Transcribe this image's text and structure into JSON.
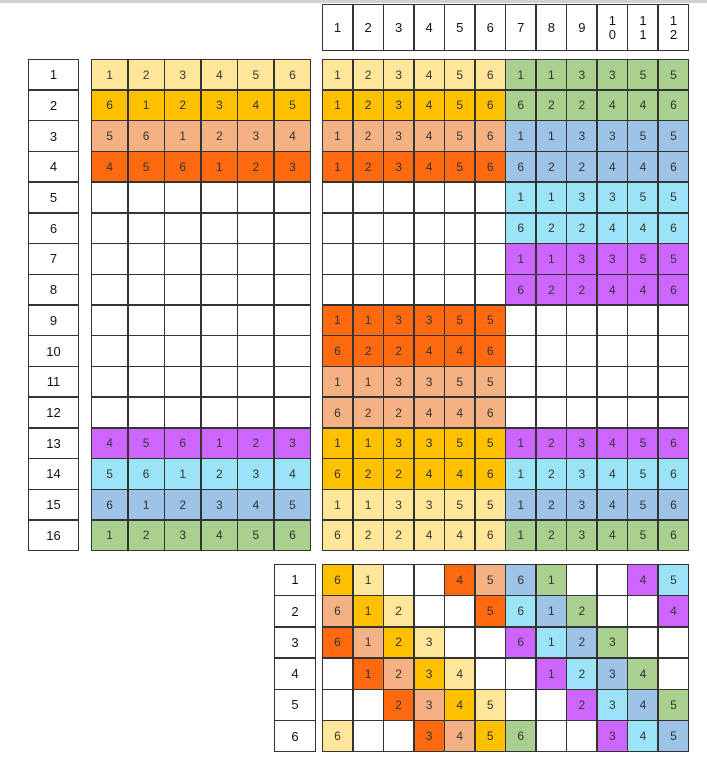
{
  "palette": {
    "Y": "#FFE699",
    "G2": "#FFC000",
    "P": "#F4B183",
    "O": "#FF6A10",
    "GR": "#A9D08E",
    "B": "#9DC3E6",
    "C": "#9BE3F7",
    "U": "#CC66FF",
    "W": "#FFFFFF"
  },
  "header": [
    "1",
    "2",
    "3",
    "4",
    "5",
    "6",
    "7",
    "8",
    "9",
    "1\n0",
    "1\n1",
    "1\n2"
  ],
  "row_labels": [
    "1",
    "2",
    "3",
    "4",
    "5",
    "6",
    "7",
    "8",
    "9",
    "10",
    "11",
    "12",
    "13",
    "14",
    "15",
    "16"
  ],
  "left_grid": {
    "values": [
      [
        "1",
        "2",
        "3",
        "4",
        "5",
        "6"
      ],
      [
        "6",
        "1",
        "2",
        "3",
        "4",
        "5"
      ],
      [
        "5",
        "6",
        "1",
        "2",
        "3",
        "4"
      ],
      [
        "4",
        "5",
        "6",
        "1",
        "2",
        "3"
      ],
      [
        "",
        "",
        "",
        "",
        "",
        ""
      ],
      [
        "",
        "",
        "",
        "",
        "",
        ""
      ],
      [
        "",
        "",
        "",
        "",
        "",
        ""
      ],
      [
        "",
        "",
        "",
        "",
        "",
        ""
      ],
      [
        "",
        "",
        "",
        "",
        "",
        ""
      ],
      [
        "",
        "",
        "",
        "",
        "",
        ""
      ],
      [
        "",
        "",
        "",
        "",
        "",
        ""
      ],
      [
        "",
        "",
        "",
        "",
        "",
        ""
      ],
      [
        "4",
        "5",
        "6",
        "1",
        "2",
        "3"
      ],
      [
        "5",
        "6",
        "1",
        "2",
        "3",
        "4"
      ],
      [
        "6",
        "1",
        "2",
        "3",
        "4",
        "5"
      ],
      [
        "1",
        "2",
        "3",
        "4",
        "5",
        "6"
      ]
    ],
    "row_colors": [
      "Y",
      "G2",
      "P",
      "O",
      "W",
      "W",
      "W",
      "W",
      "W",
      "W",
      "W",
      "W",
      "U",
      "C",
      "B",
      "GR"
    ]
  },
  "main_grid": {
    "values": [
      [
        "1",
        "2",
        "3",
        "4",
        "5",
        "6",
        "1",
        "1",
        "3",
        "3",
        "5",
        "5"
      ],
      [
        "1",
        "2",
        "3",
        "4",
        "5",
        "6",
        "6",
        "2",
        "2",
        "4",
        "4",
        "6"
      ],
      [
        "1",
        "2",
        "3",
        "4",
        "5",
        "6",
        "1",
        "1",
        "3",
        "3",
        "5",
        "5"
      ],
      [
        "1",
        "2",
        "3",
        "4",
        "5",
        "6",
        "6",
        "2",
        "2",
        "4",
        "4",
        "6"
      ],
      [
        "",
        "",
        "",
        "",
        "",
        "",
        "1",
        "1",
        "3",
        "3",
        "5",
        "5"
      ],
      [
        "",
        "",
        "",
        "",
        "",
        "",
        "6",
        "2",
        "2",
        "4",
        "4",
        "6"
      ],
      [
        "",
        "",
        "",
        "",
        "",
        "",
        "1",
        "1",
        "3",
        "3",
        "5",
        "5"
      ],
      [
        "",
        "",
        "",
        "",
        "",
        "",
        "6",
        "2",
        "2",
        "4",
        "4",
        "6"
      ],
      [
        "1",
        "1",
        "3",
        "3",
        "5",
        "5",
        "",
        "",
        "",
        "",
        "",
        ""
      ],
      [
        "6",
        "2",
        "2",
        "4",
        "4",
        "6",
        "",
        "",
        "",
        "",
        "",
        ""
      ],
      [
        "1",
        "1",
        "3",
        "3",
        "5",
        "5",
        "",
        "",
        "",
        "",
        "",
        ""
      ],
      [
        "6",
        "2",
        "2",
        "4",
        "4",
        "6",
        "",
        "",
        "",
        "",
        "",
        ""
      ],
      [
        "1",
        "1",
        "3",
        "3",
        "5",
        "5",
        "1",
        "2",
        "3",
        "4",
        "5",
        "6"
      ],
      [
        "6",
        "2",
        "2",
        "4",
        "4",
        "6",
        "1",
        "2",
        "3",
        "4",
        "5",
        "6"
      ],
      [
        "1",
        "1",
        "3",
        "3",
        "5",
        "5",
        "1",
        "2",
        "3",
        "4",
        "5",
        "6"
      ],
      [
        "6",
        "2",
        "2",
        "4",
        "4",
        "6",
        "1",
        "2",
        "3",
        "4",
        "5",
        "6"
      ]
    ],
    "colors": [
      [
        "Y",
        "GR"
      ],
      [
        "G2",
        "GR"
      ],
      [
        "P",
        "B"
      ],
      [
        "O",
        "B"
      ],
      [
        "W",
        "C"
      ],
      [
        "W",
        "C"
      ],
      [
        "W",
        "U"
      ],
      [
        "W",
        "U"
      ],
      [
        "O",
        "W"
      ],
      [
        "O",
        "W"
      ],
      [
        "P",
        "W"
      ],
      [
        "P",
        "W"
      ],
      [
        "G2",
        "U"
      ],
      [
        "G2",
        "C"
      ],
      [
        "Y",
        "B"
      ],
      [
        "Y",
        "GR"
      ]
    ]
  },
  "bottom_labels": [
    "1",
    "2",
    "3",
    "4",
    "5",
    "6"
  ],
  "bottom_grid": {
    "values": [
      [
        "6",
        "1",
        "",
        "",
        "4",
        "5",
        "6",
        "1",
        "",
        "",
        "4",
        "5"
      ],
      [
        "6",
        "1",
        "2",
        "",
        "",
        "5",
        "6",
        "1",
        "2",
        "",
        "",
        "4"
      ],
      [
        "6",
        "1",
        "2",
        "3",
        "",
        "",
        "6",
        "1",
        "2",
        "3",
        "",
        ""
      ],
      [
        "",
        "1",
        "2",
        "3",
        "4",
        "",
        "",
        "1",
        "2",
        "3",
        "4",
        ""
      ],
      [
        "",
        "",
        "2",
        "3",
        "4",
        "5",
        "",
        "",
        "2",
        "3",
        "4",
        "5"
      ],
      [
        "6",
        "",
        "",
        "3",
        "4",
        "5",
        "6",
        "",
        "",
        "3",
        "4",
        "5"
      ]
    ],
    "colors": [
      [
        "G2",
        "Y",
        "W",
        "W",
        "O",
        "P",
        "B",
        "GR",
        "W",
        "W",
        "U",
        "C"
      ],
      [
        "P",
        "G2",
        "Y",
        "W",
        "W",
        "O",
        "C",
        "B",
        "GR",
        "W",
        "W",
        "U"
      ],
      [
        "O",
        "P",
        "G2",
        "Y",
        "W",
        "W",
        "U",
        "C",
        "B",
        "GR",
        "W",
        "W"
      ],
      [
        "W",
        "O",
        "P",
        "G2",
        "Y",
        "W",
        "W",
        "U",
        "C",
        "B",
        "GR",
        "W"
      ],
      [
        "W",
        "W",
        "O",
        "P",
        "G2",
        "Y",
        "W",
        "W",
        "U",
        "C",
        "B",
        "GR"
      ],
      [
        "Y",
        "W",
        "W",
        "O",
        "P",
        "G2",
        "GR",
        "W",
        "W",
        "U",
        "C",
        "B"
      ]
    ]
  }
}
